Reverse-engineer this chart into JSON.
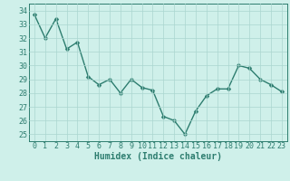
{
  "x": [
    0,
    1,
    2,
    3,
    4,
    5,
    6,
    7,
    8,
    9,
    10,
    11,
    12,
    13,
    14,
    15,
    16,
    17,
    18,
    19,
    20,
    21,
    22,
    23
  ],
  "y": [
    33.7,
    32.0,
    33.4,
    31.2,
    31.7,
    29.2,
    28.6,
    29.0,
    28.0,
    29.0,
    28.4,
    28.2,
    26.3,
    26.0,
    25.0,
    26.7,
    27.8,
    28.3,
    28.3,
    30.0,
    29.8,
    29.0,
    28.6,
    28.1
  ],
  "line_color": "#2d7d6f",
  "marker": "D",
  "marker_size": 2.5,
  "linewidth": 1.0,
  "bg_color": "#cff0ea",
  "grid_color": "#aad6cf",
  "xlabel": "Humidex (Indice chaleur)",
  "xlim": [
    -0.5,
    23.5
  ],
  "ylim": [
    24.5,
    34.5
  ],
  "yticks": [
    25,
    26,
    27,
    28,
    29,
    30,
    31,
    32,
    33,
    34
  ],
  "xticks": [
    0,
    1,
    2,
    3,
    4,
    5,
    6,
    7,
    8,
    9,
    10,
    11,
    12,
    13,
    14,
    15,
    16,
    17,
    18,
    19,
    20,
    21,
    22,
    23
  ],
  "tick_color": "#2d7d6f",
  "label_fontsize": 7,
  "tick_fontsize": 6
}
